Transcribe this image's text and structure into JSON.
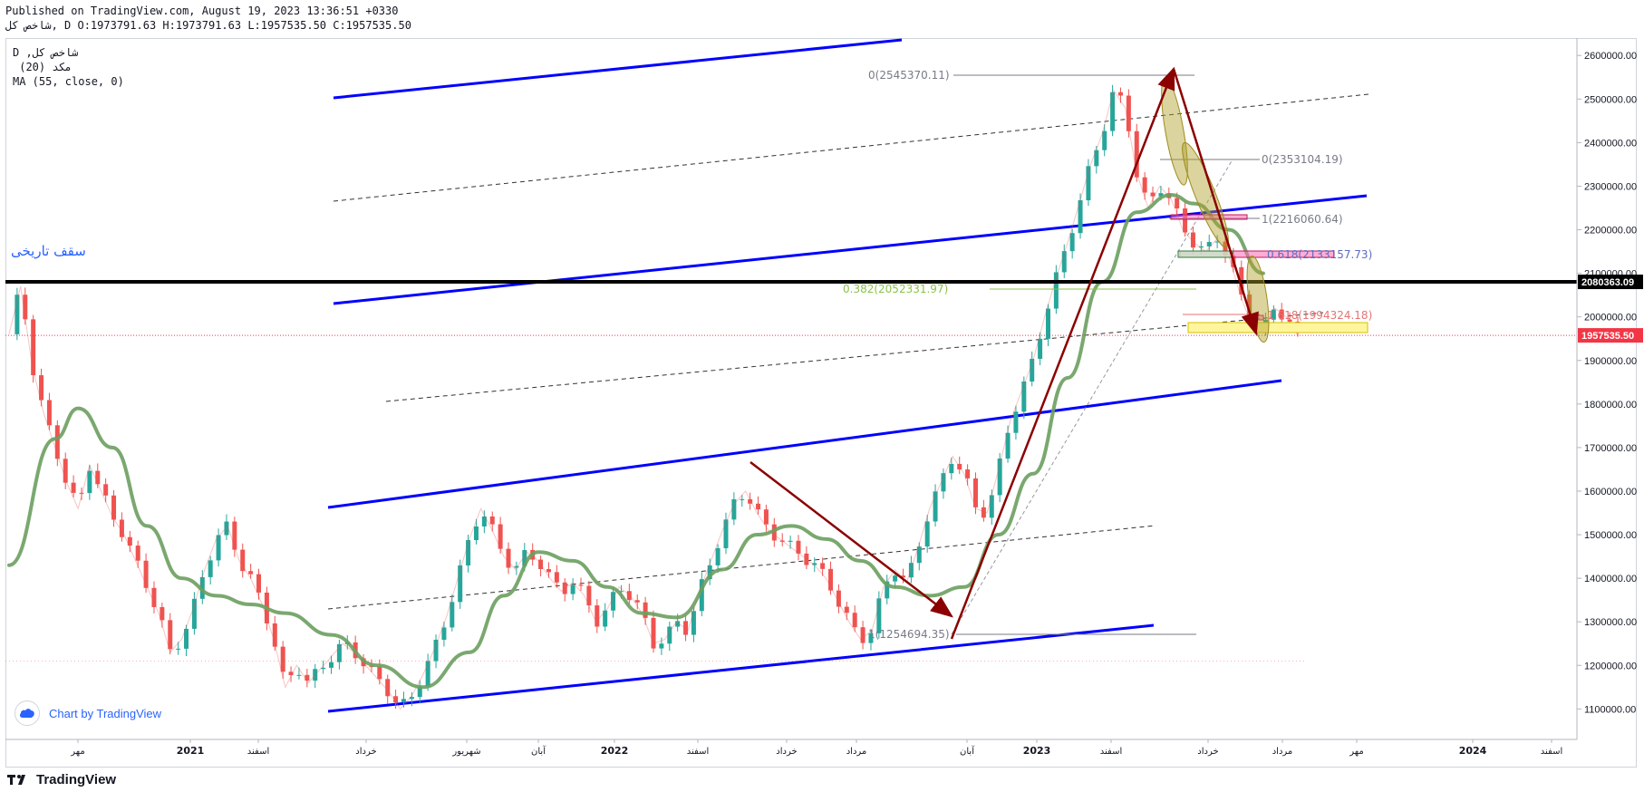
{
  "header": {
    "published": "Published on TradingView.com, August 19, 2023 13:36:51 +0330",
    "ohlc": "شاخص کل, D O:1973791.63 H:1973791.63 L:1957535.50 C:1957535.50"
  },
  "legend": {
    "line1": "D ,شاخص کل",
    "line2": " (20) مکد",
    "line3": "MA (55, close, 0)"
  },
  "branding": {
    "chart_by": "Chart by TradingView",
    "footer_logo": "TradingView"
  },
  "colors": {
    "up": "#26a69a",
    "down": "#ef5350",
    "channel": "#0000ff",
    "arrow": "#8b0000",
    "ma": "#6b9e5f",
    "fib_green": "#8bc34a",
    "last_price": "#f23645",
    "band": "#000000"
  },
  "chart_data": {
    "type": "line",
    "title": "",
    "xlabel": "",
    "ylabel": "",
    "ylim": [
      1030000,
      2640000
    ],
    "grid": false,
    "y_ticks": [
      "2600000.00",
      "2500000.00",
      "2400000.00",
      "2300000.00",
      "2200000.00",
      "2100000.00",
      "2000000.00",
      "1900000.00",
      "1800000.00",
      "1700000.00",
      "1600000.00",
      "1500000.00",
      "1400000.00",
      "1300000.00",
      "1200000.00",
      "1100000.00"
    ],
    "x_ticks": [
      "مهر",
      "2021",
      "اسفند",
      "خرداد",
      "شهریور",
      "آبان",
      "2022",
      "اسفند",
      "خرداد",
      "مرداد",
      "آبان",
      "2023",
      "اسفند",
      "خرداد",
      "مرداد",
      "مهر",
      "2024",
      "اسفند"
    ],
    "price_labels": [
      "2080363.09",
      "1957535.50"
    ],
    "annotations": {
      "ath_label": "سقف تاریخی",
      "fib_0_top": "0(2545370.11)",
      "fib_0_mid": "0(2353104.19)",
      "fib_1_mid": "1(2216060.64)",
      "fib_0382": "0.382(2052331.97)",
      "fib_1_bottom": "1(1254694.35)",
      "fib_box_label": "0.618(2133157.73)",
      "fib_lower_label": "1.618(1994324.18)"
    },
    "series": [
      {
        "name": "شاخص کل",
        "points": [
          [
            0,
            1960000
          ],
          [
            1,
            2070000
          ],
          [
            2,
            1890000
          ],
          [
            3,
            1780000
          ],
          [
            4,
            1700000
          ],
          [
            5,
            1620000
          ],
          [
            6,
            1560000
          ],
          [
            7,
            1660000
          ],
          [
            8,
            1600000
          ],
          [
            9,
            1540000
          ],
          [
            10,
            1500000
          ],
          [
            11,
            1440000
          ],
          [
            12,
            1380000
          ],
          [
            13,
            1320000
          ],
          [
            14,
            1230000
          ],
          [
            15,
            1260000
          ],
          [
            16,
            1330000
          ],
          [
            17,
            1420000
          ],
          [
            18,
            1490000
          ],
          [
            19,
            1520000
          ],
          [
            20,
            1440000
          ],
          [
            21,
            1400000
          ],
          [
            22,
            1340000
          ],
          [
            23,
            1260000
          ],
          [
            24,
            1150000
          ],
          [
            25,
            1200000
          ],
          [
            26,
            1160000
          ],
          [
            27,
            1190000
          ],
          [
            28,
            1220000
          ],
          [
            29,
            1250000
          ],
          [
            30,
            1230000
          ],
          [
            31,
            1200000
          ],
          [
            32,
            1170000
          ],
          [
            33,
            1140000
          ],
          [
            34,
            1100000
          ],
          [
            35,
            1130000
          ],
          [
            36,
            1180000
          ],
          [
            37,
            1240000
          ],
          [
            38,
            1310000
          ],
          [
            39,
            1400000
          ],
          [
            40,
            1490000
          ],
          [
            41,
            1560000
          ],
          [
            42,
            1510000
          ],
          [
            43,
            1450000
          ],
          [
            44,
            1420000
          ],
          [
            45,
            1460000
          ],
          [
            46,
            1440000
          ],
          [
            47,
            1400000
          ],
          [
            48,
            1370000
          ],
          [
            49,
            1390000
          ],
          [
            50,
            1360000
          ],
          [
            51,
            1300000
          ],
          [
            52,
            1330000
          ],
          [
            53,
            1380000
          ],
          [
            54,
            1360000
          ],
          [
            55,
            1320000
          ],
          [
            56,
            1250000
          ],
          [
            57,
            1260000
          ],
          [
            58,
            1300000
          ],
          [
            59,
            1280000
          ],
          [
            60,
            1370000
          ],
          [
            61,
            1440000
          ],
          [
            62,
            1510000
          ],
          [
            63,
            1570000
          ],
          [
            64,
            1600000
          ],
          [
            65,
            1550000
          ],
          [
            66,
            1510000
          ],
          [
            67,
            1490000
          ],
          [
            68,
            1470000
          ],
          [
            69,
            1450000
          ],
          [
            70,
            1430000
          ],
          [
            71,
            1400000
          ],
          [
            72,
            1350000
          ],
          [
            73,
            1300000
          ],
          [
            74,
            1260000
          ],
          [
            75,
            1280000
          ],
          [
            76,
            1380000
          ],
          [
            77,
            1420000
          ],
          [
            78,
            1390000
          ],
          [
            79,
            1470000
          ],
          [
            80,
            1560000
          ],
          [
            81,
            1620000
          ],
          [
            82,
            1680000
          ],
          [
            83,
            1640000
          ],
          [
            84,
            1560000
          ],
          [
            85,
            1550000
          ],
          [
            86,
            1650000
          ],
          [
            87,
            1760000
          ],
          [
            88,
            1830000
          ],
          [
            89,
            1900000
          ],
          [
            90,
            2000000
          ],
          [
            91,
            2090000
          ],
          [
            92,
            2170000
          ],
          [
            93,
            2260000
          ],
          [
            94,
            2350000
          ],
          [
            95,
            2420000
          ],
          [
            96,
            2520000
          ],
          [
            97,
            2480000
          ],
          [
            98,
            2330000
          ],
          [
            99,
            2250000
          ],
          [
            100,
            2300000
          ],
          [
            101,
            2270000
          ],
          [
            102,
            2200000
          ],
          [
            103,
            2170000
          ],
          [
            104,
            2150000
          ],
          [
            105,
            2180000
          ],
          [
            106,
            2140000
          ],
          [
            107,
            2050000
          ],
          [
            108,
            1980000
          ],
          [
            109,
            1970000
          ],
          [
            110,
            2020000
          ],
          [
            111,
            2000000
          ],
          [
            112,
            1957535.5
          ]
        ]
      },
      {
        "name": "MA (55, close, 0)",
        "points": [
          [
            0,
            1430000
          ],
          [
            4,
            1720000
          ],
          [
            6,
            1790000
          ],
          [
            9,
            1700000
          ],
          [
            12,
            1520000
          ],
          [
            15,
            1400000
          ],
          [
            18,
            1360000
          ],
          [
            21,
            1340000
          ],
          [
            24,
            1320000
          ],
          [
            28,
            1270000
          ],
          [
            32,
            1200000
          ],
          [
            36,
            1150000
          ],
          [
            40,
            1230000
          ],
          [
            43,
            1360000
          ],
          [
            46,
            1460000
          ],
          [
            49,
            1440000
          ],
          [
            52,
            1380000
          ],
          [
            55,
            1320000
          ],
          [
            58,
            1310000
          ],
          [
            62,
            1420000
          ],
          [
            65,
            1500000
          ],
          [
            68,
            1520000
          ],
          [
            71,
            1490000
          ],
          [
            74,
            1440000
          ],
          [
            77,
            1380000
          ],
          [
            80,
            1360000
          ],
          [
            83,
            1380000
          ],
          [
            86,
            1500000
          ],
          [
            89,
            1640000
          ],
          [
            92,
            1860000
          ],
          [
            95,
            2080000
          ],
          [
            98,
            2240000
          ],
          [
            101,
            2280000
          ],
          [
            103,
            2260000
          ],
          [
            106,
            2200000
          ],
          [
            109,
            2100000
          ]
        ]
      }
    ]
  }
}
